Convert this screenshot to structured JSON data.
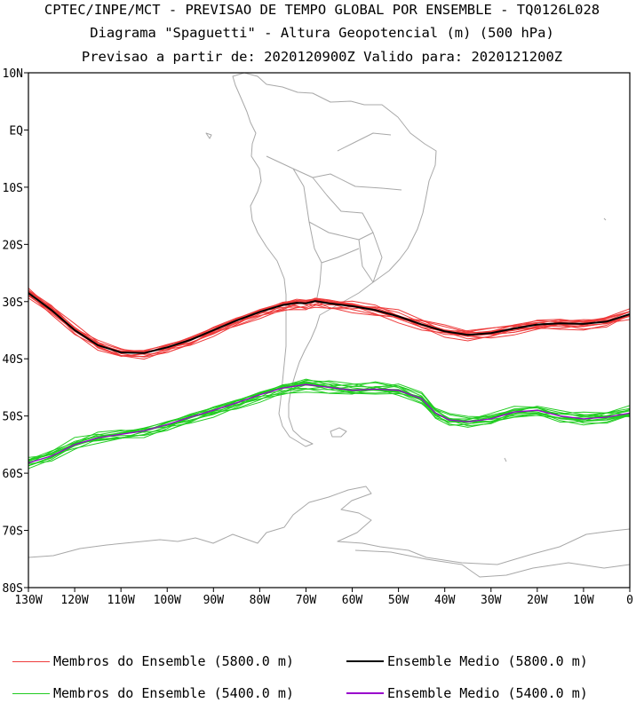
{
  "header": {
    "line1": "CPTEC/INPE/MCT - PREVISAO DE TEMPO GLOBAL POR ENSEMBLE - TQ0126L028",
    "line2": "Diagrama \"Spaguetti\" - Altura Geopotencial (m) (500 hPa)",
    "line3": "Previsao a partir de: 2020120900Z  Valido para: 2020121200Z"
  },
  "axes": {
    "y_labels": [
      "10N",
      "EQ",
      "10S",
      "20S",
      "30S",
      "40S",
      "50S",
      "60S",
      "70S",
      "80S"
    ],
    "x_labels": [
      "130W",
      "120W",
      "110W",
      "100W",
      "90W",
      "80W",
      "70W",
      "60W",
      "50W",
      "40W",
      "30W",
      "20W",
      "10W",
      "0"
    ]
  },
  "colors": {
    "red": "#ee3b3b",
    "green": "#22cc22",
    "black": "#000000",
    "purple": "#9900cc",
    "coast": "#a8a8a8"
  },
  "legend": {
    "members_5800": "Membros do Ensemble (5800.0 m)",
    "mean_5800": "Ensemble Medio (5800.0 m)",
    "members_5400": "Membros do Ensemble (5400.0 m)",
    "mean_5400": "Ensemble Medio (5400.0 m)"
  },
  "map_data": {
    "lon_range": [
      -130,
      0
    ],
    "lat_range": [
      -80,
      10
    ],
    "mean_5800": [
      [
        -130,
        -28.5
      ],
      [
        -125,
        -31.5
      ],
      [
        -120,
        -35
      ],
      [
        -115,
        -37.6
      ],
      [
        -110,
        -38.9
      ],
      [
        -105,
        -39
      ],
      [
        -100,
        -38
      ],
      [
        -95,
        -36.7
      ],
      [
        -90,
        -35
      ],
      [
        -85,
        -33.3
      ],
      [
        -80,
        -31.8
      ],
      [
        -75,
        -30.6
      ],
      [
        -72,
        -30.2
      ],
      [
        -70,
        -30.3
      ],
      [
        -68,
        -29.9
      ],
      [
        -65,
        -30.3
      ],
      [
        -60,
        -30.8
      ],
      [
        -55,
        -31.5
      ],
      [
        -50,
        -32.6
      ],
      [
        -45,
        -34
      ],
      [
        -40,
        -35.2
      ],
      [
        -35,
        -35.8
      ],
      [
        -30,
        -35.5
      ],
      [
        -25,
        -34.7
      ],
      [
        -20,
        -34
      ],
      [
        -15,
        -33.8
      ],
      [
        -10,
        -33.9
      ],
      [
        -5,
        -33.5
      ],
      [
        0,
        -32.2
      ]
    ],
    "mean_5400": [
      [
        -130,
        -58.2
      ],
      [
        -125,
        -57
      ],
      [
        -120,
        -55
      ],
      [
        -115,
        -53.8
      ],
      [
        -110,
        -53.2
      ],
      [
        -105,
        -52.6
      ],
      [
        -100,
        -51.5
      ],
      [
        -95,
        -50.2
      ],
      [
        -90,
        -49
      ],
      [
        -85,
        -47.7
      ],
      [
        -80,
        -46.3
      ],
      [
        -75,
        -45.1
      ],
      [
        -70,
        -44.5
      ],
      [
        -65,
        -45
      ],
      [
        -60,
        -45.5
      ],
      [
        -55,
        -45.3
      ],
      [
        -50,
        -45.5
      ],
      [
        -45,
        -47
      ],
      [
        -42,
        -49.5
      ],
      [
        -39,
        -50.7
      ],
      [
        -35,
        -51
      ],
      [
        -30,
        -50.5
      ],
      [
        -25,
        -49.3
      ],
      [
        -20,
        -49
      ],
      [
        -15,
        -50
      ],
      [
        -10,
        -50.5
      ],
      [
        -5,
        -50.2
      ],
      [
        0,
        -49.5
      ]
    ]
  }
}
